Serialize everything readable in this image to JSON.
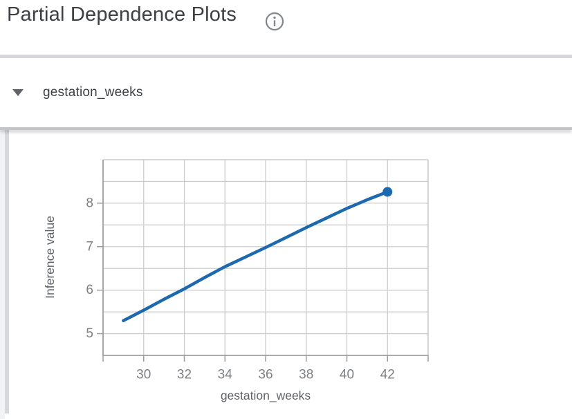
{
  "header": {
    "title": "Partial Dependence Plots",
    "info_icon": "info-icon"
  },
  "feature_section": {
    "collapse_icon": "triangle-down-icon",
    "expanded": true,
    "feature_label": "gestation_weeks"
  },
  "chart_data": {
    "type": "line",
    "title": "",
    "xlabel": "gestation_weeks",
    "ylabel": "Inference value",
    "x": [
      29,
      30,
      31,
      32,
      33,
      34,
      35,
      36,
      37,
      38,
      39,
      40,
      41,
      42
    ],
    "y": [
      5.3,
      5.54,
      5.79,
      6.03,
      6.29,
      6.54,
      6.76,
      6.98,
      7.21,
      7.44,
      7.66,
      7.88,
      8.08,
      8.26
    ],
    "xlim": [
      28,
      44
    ],
    "ylim": [
      4.5,
      9.0
    ],
    "x_grid_step": 2,
    "y_grid_step": 0.5,
    "x_tick_labels": [
      30,
      32,
      34,
      36,
      38,
      40,
      42
    ],
    "y_tick_labels": [
      5,
      6,
      7,
      8
    ],
    "grid": true,
    "legend": "none",
    "endpoint_marker": true,
    "line_color": "#1c69b0"
  },
  "colors": {
    "line": "#1c69b0",
    "grid": "#cccccc",
    "plot_border": "#c6c6c6",
    "axis": "#9e9e9e",
    "tick_text": "#7d8084",
    "axis_title_text": "#5f6368",
    "title_text": "#3c4043",
    "divider": "#d5d7da",
    "divider_dark": "#c2c4c7",
    "gutter": "#f1f3f4",
    "scrollbar": "#d6d8db",
    "icon_gray": "#80868b"
  }
}
